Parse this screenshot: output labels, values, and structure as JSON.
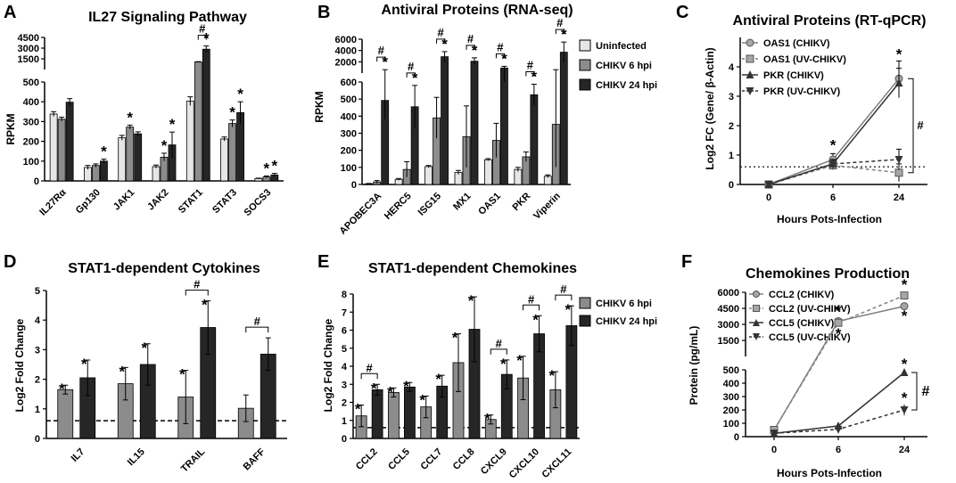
{
  "colors": {
    "light": "#e6e6e6",
    "mid": "#8c8c8c",
    "dark": "#262626",
    "line": "#000000",
    "errbar": "#000000",
    "dots": "#000000"
  },
  "chart_data": [
    {
      "panel": "A",
      "type": "bar",
      "title": "IL27 Signaling Pathway",
      "ylabel": "RPKM",
      "xlabel": "",
      "categories": [
        "IL27Rα",
        "Gp130",
        "JAK1",
        "JAK2",
        "STAT1",
        "STAT3",
        "SOCS3"
      ],
      "yticks_bottom": [
        "0",
        "100",
        "200",
        "300",
        "400",
        "500"
      ],
      "yticks_top": [
        "1500",
        "3000",
        "4500"
      ],
      "series": [
        {
          "name": "Uninfected",
          "values": [
            338,
            68,
            218,
            72,
            403,
            212,
            12
          ],
          "errors": [
            12,
            10,
            12,
            8,
            22,
            10,
            2
          ]
        },
        {
          "name": "CHIKV 6 hpi",
          "values": [
            312,
            78,
            272,
            120,
            1050,
            290,
            20
          ],
          "errors": [
            10,
            8,
            10,
            20,
            50,
            18,
            5
          ]
        },
        {
          "name": "CHIKV 24 hpi",
          "values": [
            398,
            100,
            238,
            182,
            2850,
            345,
            30
          ],
          "errors": [
            18,
            10,
            10,
            65,
            450,
            55,
            8
          ]
        }
      ],
      "stars": [
        "*",
        "*",
        "*",
        "*",
        "*",
        "*",
        "*",
        "*",
        "*",
        "*",
        "*"
      ],
      "hash": [
        "#"
      ]
    },
    {
      "panel": "B",
      "type": "bar",
      "title": "Antiviral Proteins (RNA-seq)",
      "ylabel": "RPKM",
      "xlabel": "",
      "categories": [
        "APOBEC3A",
        "HERC5",
        "ISG15",
        "MX1",
        "OAS1",
        "PKR",
        "Viperin"
      ],
      "yticks_bottom": [
        "0",
        "100",
        "200",
        "300",
        "400",
        "500",
        "600"
      ],
      "yticks_top": [
        "2000",
        "4000",
        "6000"
      ],
      "series": [
        {
          "name": "Uninfected",
          "values": [
            4,
            30,
            105,
            70,
            145,
            88,
            48
          ],
          "errors": [
            2,
            5,
            6,
            12,
            6,
            12,
            8
          ]
        },
        {
          "name": "CHIKV 6 hpi",
          "values": [
            15,
            88,
            390,
            280,
            258,
            162,
            352
          ],
          "errors": [
            8,
            45,
            120,
            180,
            100,
            28,
            250
          ]
        },
        {
          "name": "CHIKV 24 hpi",
          "values": [
            492,
            455,
            2900,
            2100,
            900,
            525,
            3700
          ],
          "errors": [
            110,
            125,
            900,
            600,
            300,
            62,
            1800
          ]
        }
      ],
      "stars": [
        "*",
        "*",
        "*",
        "*",
        "*",
        "*",
        "*"
      ],
      "hash": [
        "#",
        "#",
        "#",
        "#",
        "#",
        "#",
        "#"
      ]
    },
    {
      "panel": "C",
      "type": "line",
      "title": "Antiviral Proteins (RT-qPCR)",
      "ylabel": "Log2 FC (Gene/ β-Actin)",
      "xlabel": "Hours Pots-Infection",
      "x": [
        "0",
        "6",
        "24"
      ],
      "yticks": [
        "0",
        "1",
        "2",
        "3",
        "4"
      ],
      "ylim": [
        0,
        5
      ],
      "threshold": 0.6,
      "series": [
        {
          "name": "OAS1 (CHIKV)",
          "values": [
            0,
            0.85,
            3.6
          ],
          "errors": [
            0.05,
            0.2,
            0.6
          ]
        },
        {
          "name": "OAS1 (UV-CHIKV)",
          "values": [
            0,
            0.65,
            0.4
          ],
          "errors": [
            0.05,
            0.15,
            0.3
          ]
        },
        {
          "name": "PKR (CHIKV)",
          "values": [
            0,
            0.7,
            3.45
          ],
          "errors": [
            0.05,
            0.15,
            0.5
          ]
        },
        {
          "name": "PKR (UV-CHIKV)",
          "values": [
            0,
            0.7,
            0.85
          ],
          "errors": [
            0.05,
            0.15,
            0.35
          ]
        }
      ],
      "stars": [
        "*",
        "*"
      ],
      "hash": [
        "#"
      ]
    },
    {
      "panel": "D",
      "type": "bar",
      "title": "STAT1-dependent Cytokines",
      "ylabel": "Log2 Fold Change",
      "xlabel": "",
      "categories": [
        "IL7",
        "IL15",
        "TRAIL",
        "BAFF"
      ],
      "yticks": [
        "0",
        "1",
        "2",
        "3",
        "4",
        "5"
      ],
      "ylim": [
        0,
        5
      ],
      "threshold": 0.6,
      "series": [
        {
          "name": "CHIKV 6 hpi",
          "values": [
            1.65,
            1.85,
            1.4,
            1.02
          ],
          "errors": [
            0.15,
            0.55,
            0.9,
            0.45
          ]
        },
        {
          "name": "CHIKV 24 hpi",
          "values": [
            2.05,
            2.5,
            3.75,
            2.85
          ],
          "errors": [
            0.6,
            0.7,
            0.9,
            0.55
          ]
        }
      ],
      "stars": [
        "*",
        "*",
        "*",
        "*",
        "*",
        "*"
      ],
      "hash": [
        "#",
        "#"
      ]
    },
    {
      "panel": "E",
      "type": "bar",
      "title": "STAT1-dependent Chemokines",
      "ylabel": "Log2 Fold Change",
      "xlabel": "",
      "categories": [
        "CCL2",
        "CCL5",
        "CCL7",
        "CCL8",
        "CXCL9",
        "CXCL10",
        "CXCL11"
      ],
      "yticks": [
        "0",
        "1",
        "2",
        "3",
        "4",
        "5",
        "6",
        "7",
        "8"
      ],
      "ylim": [
        0,
        8
      ],
      "threshold": 0.6,
      "series": [
        {
          "name": "CHIKV 6 hpi",
          "values": [
            1.25,
            2.55,
            1.75,
            4.2,
            1.05,
            3.35,
            2.7
          ],
          "errors": [
            0.6,
            0.25,
            0.6,
            1.6,
            0.25,
            1.2,
            1.0
          ]
        },
        {
          "name": "CHIKV 24 hpi",
          "values": [
            2.7,
            2.85,
            2.9,
            6.05,
            3.55,
            5.8,
            6.25
          ],
          "errors": [
            0.3,
            0.25,
            0.6,
            1.8,
            0.8,
            1.0,
            1.1
          ]
        }
      ],
      "stars": [
        "*",
        "*",
        "*",
        "*",
        "*",
        "*",
        "*",
        "*",
        "*",
        "*",
        "*",
        "*",
        "*",
        "*"
      ],
      "hash": [
        "#",
        "#",
        "#",
        "#"
      ]
    },
    {
      "panel": "F",
      "type": "line",
      "title": "Chemokines Production",
      "ylabel": "Protein (pg/mL)",
      "xlabel": "Hours Pots-Infection",
      "x": [
        "0",
        "6",
        "24"
      ],
      "yticks_bottom": [
        "0",
        "100",
        "200",
        "300",
        "400",
        "500"
      ],
      "yticks_top": [
        "1500",
        "3000",
        "4500",
        "6000"
      ],
      "series": [
        {
          "name": "CCL2 (CHIKV)",
          "values": [
            50,
            3300,
            4700
          ],
          "errors": [
            5,
            150,
            200
          ]
        },
        {
          "name": "CCL2 (UV-CHIKV)",
          "values": [
            50,
            3150,
            5700
          ],
          "errors": [
            5,
            200,
            250
          ]
        },
        {
          "name": "CCL5 (CHIKV)",
          "values": [
            25,
            80,
            480
          ],
          "errors": [
            3,
            10,
            15
          ]
        },
        {
          "name": "CCL5 (UV-CHIKV)",
          "values": [
            25,
            55,
            200
          ],
          "errors": [
            3,
            15,
            40
          ]
        }
      ],
      "stars": [
        "*",
        "*",
        "*",
        "*",
        "*",
        "*",
        "*"
      ],
      "hash": [
        "#"
      ]
    }
  ]
}
